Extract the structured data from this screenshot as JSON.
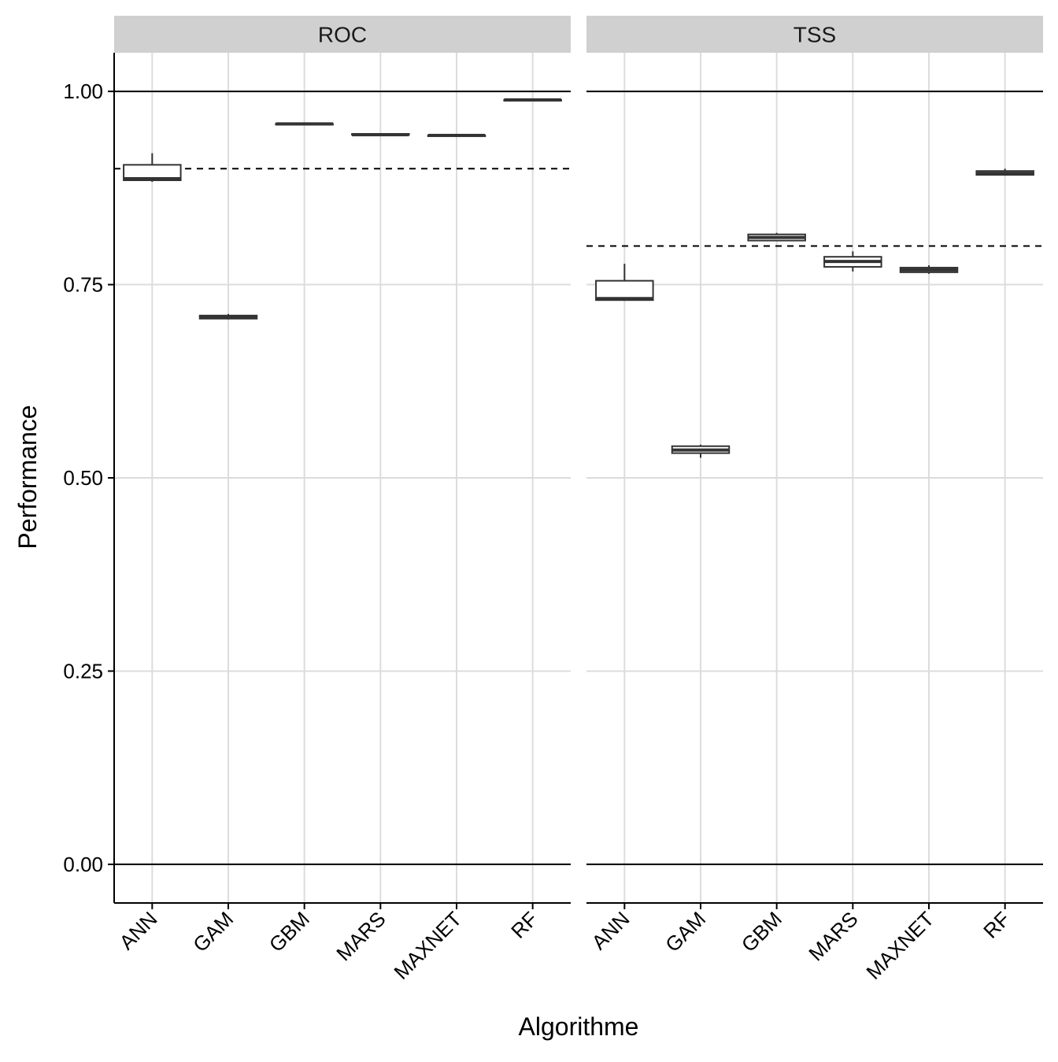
{
  "chart_data": {
    "type": "boxplot",
    "xlabel": "Algorithme",
    "ylabel": "Performance",
    "ylim": [
      -0.05,
      1.05
    ],
    "yticks": [
      0.0,
      0.25,
      0.5,
      0.75,
      1.0
    ],
    "ytick_labels": [
      "0.00",
      "0.25",
      "0.50",
      "0.75",
      "1.00"
    ],
    "reference_lines_solid": [
      0.0,
      1.0
    ],
    "grid": "major gridlines on",
    "categories": [
      "ANN",
      "GAM",
      "GBM",
      "MARS",
      "MAXNET",
      "RF"
    ],
    "panels": [
      {
        "facet": "ROC",
        "threshold": 0.9,
        "boxes": [
          {
            "category": "ANN",
            "min": 0.883,
            "q1": 0.885,
            "median": 0.887,
            "q3": 0.905,
            "max": 0.92
          },
          {
            "category": "GAM",
            "min": 0.705,
            "q1": 0.706,
            "median": 0.708,
            "q3": 0.71,
            "max": 0.712
          },
          {
            "category": "GBM",
            "min": 0.957,
            "q1": 0.957,
            "median": 0.958,
            "q3": 0.958,
            "max": 0.959
          },
          {
            "category": "MARS",
            "min": 0.943,
            "q1": 0.944,
            "median": 0.944,
            "q3": 0.945,
            "max": 0.945
          },
          {
            "category": "MAXNET",
            "min": 0.942,
            "q1": 0.942,
            "median": 0.943,
            "q3": 0.943,
            "max": 0.944
          },
          {
            "category": "RF",
            "min": 0.988,
            "q1": 0.988,
            "median": 0.989,
            "q3": 0.989,
            "max": 0.99
          }
        ]
      },
      {
        "facet": "TSS",
        "threshold": 0.8,
        "boxes": [
          {
            "category": "ANN",
            "min": 0.729,
            "q1": 0.73,
            "median": 0.732,
            "q3": 0.755,
            "max": 0.777
          },
          {
            "category": "GAM",
            "min": 0.526,
            "q1": 0.532,
            "median": 0.536,
            "q3": 0.541,
            "max": 0.543
          },
          {
            "category": "GBM",
            "min": 0.806,
            "q1": 0.807,
            "median": 0.811,
            "q3": 0.815,
            "max": 0.817
          },
          {
            "category": "MARS",
            "min": 0.767,
            "q1": 0.773,
            "median": 0.78,
            "q3": 0.786,
            "max": 0.793
          },
          {
            "category": "MAXNET",
            "min": 0.764,
            "q1": 0.766,
            "median": 0.769,
            "q3": 0.772,
            "max": 0.775
          },
          {
            "category": "RF",
            "min": 0.891,
            "q1": 0.892,
            "median": 0.894,
            "q3": 0.897,
            "max": 0.9
          }
        ]
      }
    ]
  }
}
